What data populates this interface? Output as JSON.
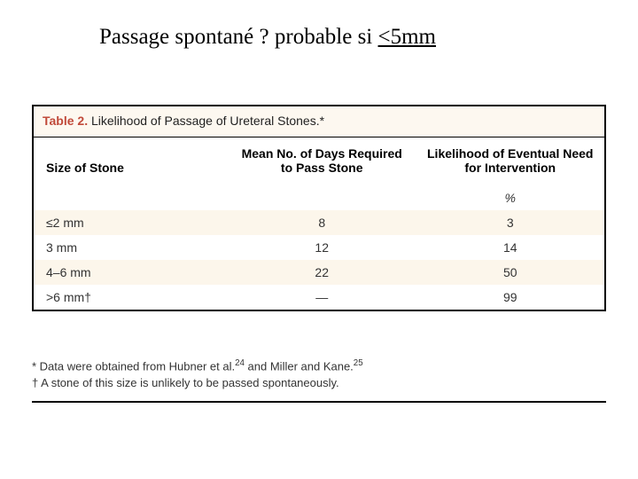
{
  "title": {
    "prefix": "Passage spontané ?  probable si ",
    "underlined": "<5mm"
  },
  "table": {
    "caption_label": "Table 2.",
    "caption_desc": " Likelihood of Passage of Ureteral Stones.*",
    "columns": [
      "Size of Stone",
      "Mean No. of Days Required to Pass Stone",
      "Likelihood of Eventual Need for Intervention"
    ],
    "percent_row": [
      "",
      "",
      "%"
    ],
    "rows": [
      [
        "≤2 mm",
        "8",
        "3"
      ],
      [
        "3 mm",
        "12",
        "14"
      ],
      [
        "4–6 mm",
        "22",
        "50"
      ],
      [
        ">6 mm†",
        "—",
        "99"
      ]
    ],
    "stripe_color": "#fcf6eb",
    "caption_bg": "#fdf8f0",
    "accent_color": "#c14a3a",
    "col_widths": [
      "34%",
      "33%",
      "33%"
    ]
  },
  "footnotes": {
    "line1_pre": "* Data were obtained from Hubner et al.",
    "line1_sup1": "24",
    "line1_mid": " and Miller and Kane.",
    "line1_sup2": "25",
    "line2": "† A stone of this size is unlikely to be passed spontaneously."
  }
}
